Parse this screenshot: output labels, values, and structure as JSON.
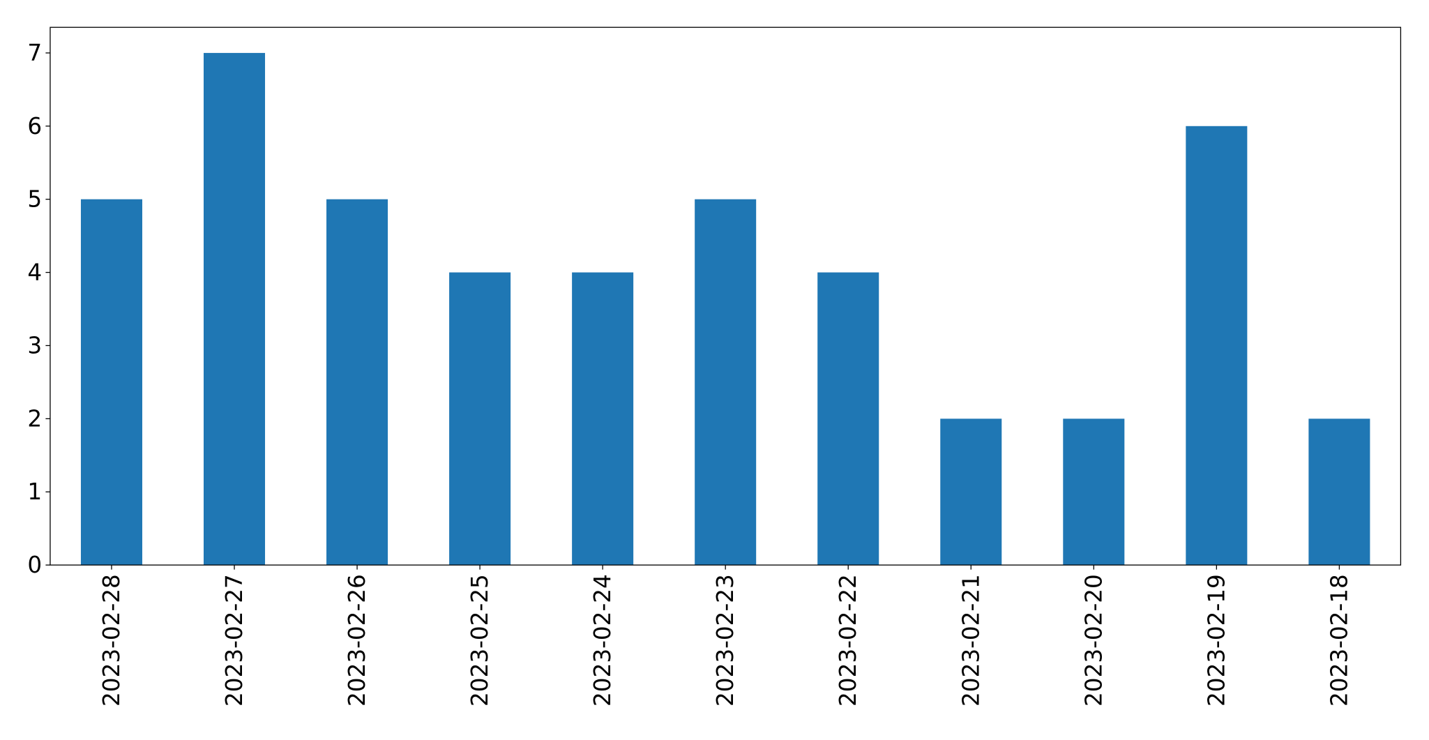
{
  "chart_data": {
    "type": "bar",
    "title": "",
    "xlabel": "",
    "ylabel": "",
    "categories": [
      "2023-02-28",
      "2023-02-27",
      "2023-02-26",
      "2023-02-25",
      "2023-02-24",
      "2023-02-23",
      "2023-02-22",
      "2023-02-21",
      "2023-02-20",
      "2023-02-19",
      "2023-02-18"
    ],
    "values": [
      5,
      7,
      5,
      4,
      4,
      5,
      4,
      2,
      2,
      6,
      2
    ],
    "ylim": [
      0,
      7.35
    ],
    "yticks": [
      0,
      1,
      2,
      3,
      4,
      5,
      6,
      7
    ],
    "grid": false,
    "legend": "none",
    "bar_color": "#1f77b4",
    "x_tick_rotation": 90
  }
}
